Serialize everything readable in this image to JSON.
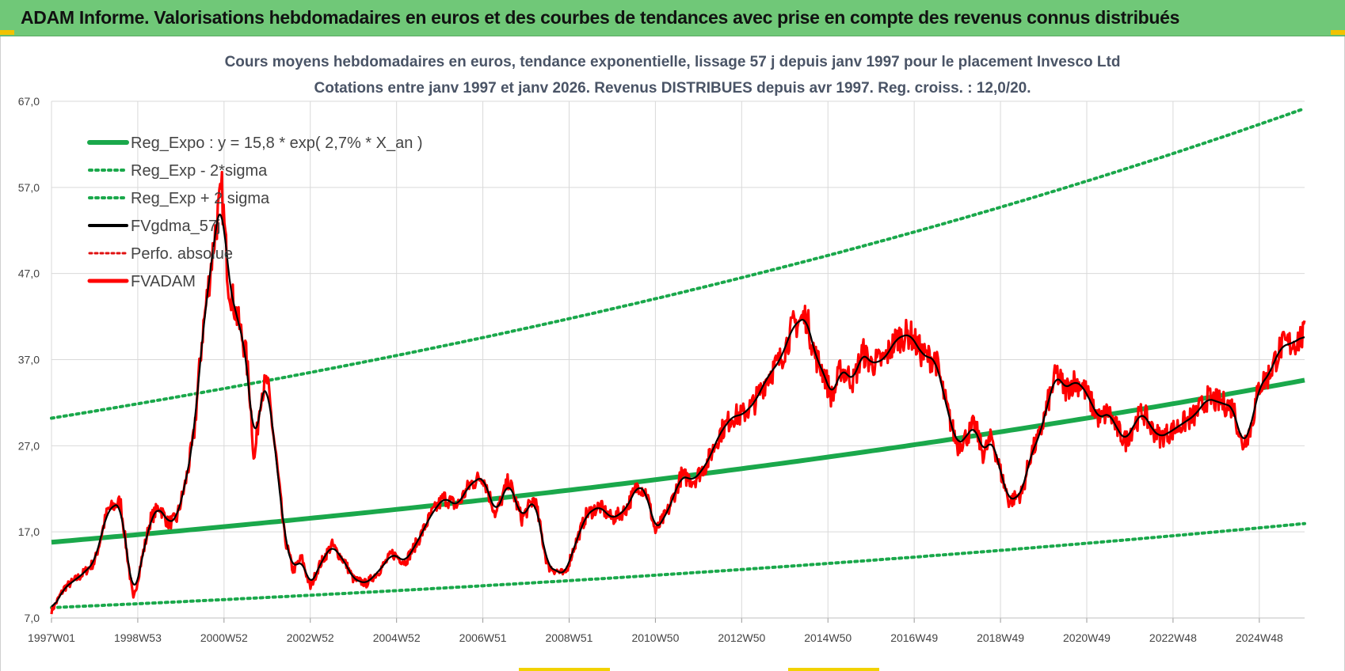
{
  "header": {
    "title": "ADAM Informe. Valorisations hebdomadaires en euros et des courbes de tendances avec prise en compte des revenus connus distribués"
  },
  "chart_data": {
    "type": "line",
    "title_line1": "Cours moyens hebdomadaires en euros, tendance exponentielle, lissage 57 j depuis janv 1997 pour le placement Invesco Ltd",
    "title_line2": "Cotations entre janv 1997 et janv 2026. Revenus DISTRIBUES depuis avr 1997. Reg. croiss. : 12,0/20.",
    "xlabel": "",
    "ylabel": "",
    "x_range": [
      1997.0,
      2026.05
    ],
    "ylim": [
      7.0,
      67.0
    ],
    "y_ticks": [
      7.0,
      17.0,
      27.0,
      37.0,
      47.0,
      57.0,
      67.0
    ],
    "y_tick_labels": [
      "7,0",
      "17,0",
      "27,0",
      "37,0",
      "47,0",
      "57,0",
      "67,0"
    ],
    "x_ticks": [
      1997.0,
      1999.0,
      2001.0,
      2003.0,
      2005.0,
      2007.0,
      2009.0,
      2011.0,
      2013.0,
      2015.0,
      2017.0,
      2019.0,
      2021.0,
      2023.0,
      2025.0
    ],
    "x_tick_labels": [
      "1997W01",
      "1998W53",
      "2000W52",
      "2002W52",
      "2004W52",
      "2006W51",
      "2008W51",
      "2010W50",
      "2012W50",
      "2014W50",
      "2016W49",
      "2018W49",
      "2020W49",
      "2022W48",
      "2024W48"
    ],
    "grid": true,
    "legend_position": "top-left",
    "legend": [
      "Reg_Expo : y = 15,8 * exp( 2,7% *  X_an )",
      "Reg_Exp - 2*sigma",
      "Reg_Exp + 2 sigma",
      "FVgdma_57j",
      "Perfo. absolue",
      "FVADAM"
    ],
    "colors": {
      "reg": "#1aa84b",
      "band": "#1aa84b",
      "smooth": "#000000",
      "perfo": "#e01010",
      "price": "#ff0000"
    },
    "series": [
      {
        "name": "Reg_Expo",
        "x": [
          1997.0,
          2026.05
        ],
        "y_formula": "15.8*exp(0.027*(x-1997))",
        "x_sample": [
          1997,
          2005,
          2015,
          2026
        ],
        "values_sample": [
          15.8,
          19.6,
          25.7,
          34.6
        ]
      },
      {
        "name": "Reg_Exp - 2*sigma",
        "x_sample": [
          1997,
          2005,
          2015,
          2026
        ],
        "values_sample": [
          8.2,
          10.2,
          13.4,
          18.1
        ]
      },
      {
        "name": "Reg_Exp + 2 sigma",
        "x_sample": [
          1997,
          2005,
          2015,
          2026
        ],
        "values_sample": [
          30.2,
          37.6,
          49.1,
          66.5
        ]
      },
      {
        "name": "FVADAM",
        "x": [
          1997.0,
          1997.3,
          1997.7,
          1998.0,
          1998.3,
          1998.6,
          1998.75,
          1998.9,
          1999.1,
          1999.3,
          1999.5,
          1999.7,
          1999.9,
          2000.1,
          2000.3,
          2000.5,
          2000.8,
          2000.95,
          2001.1,
          2001.3,
          2001.5,
          2001.6,
          2001.7,
          2001.85,
          2002.0,
          2002.2,
          2002.4,
          2002.6,
          2002.8,
          2003.0,
          2003.2,
          2003.5,
          2003.8,
          2004.0,
          2004.3,
          2004.6,
          2004.9,
          2005.2,
          2005.5,
          2005.8,
          2006.1,
          2006.4,
          2006.7,
          2007.0,
          2007.3,
          2007.6,
          2007.9,
          2008.2,
          2008.5,
          2008.7,
          2008.9,
          2009.1,
          2009.4,
          2009.7,
          2010.0,
          2010.3,
          2010.6,
          2010.8,
          2011.0,
          2011.3,
          2011.6,
          2011.9,
          2012.2,
          2012.5,
          2012.8,
          2013.0,
          2013.3,
          2013.6,
          2013.9,
          2014.2,
          2014.5,
          2014.7,
          2014.9,
          2015.1,
          2015.3,
          2015.6,
          2015.8,
          2016.0,
          2016.3,
          2016.6,
          2016.9,
          2017.2,
          2017.5,
          2017.8,
          2018.0,
          2018.2,
          2018.4,
          2018.6,
          2018.8,
          2019.0,
          2019.2,
          2019.5,
          2019.7,
          2019.9,
          2020.1,
          2020.3,
          2020.5,
          2020.7,
          2020.9,
          2021.1,
          2021.3,
          2021.5,
          2021.7,
          2021.9,
          2022.1,
          2022.3,
          2022.5,
          2022.7,
          2022.9,
          2023.2,
          2023.5,
          2023.8,
          2024.1,
          2024.4,
          2024.6,
          2024.8,
          2025.0,
          2025.2,
          2025.5,
          2025.8,
          2026.05
        ],
        "values": [
          7.8,
          10.5,
          12.0,
          13.5,
          19.5,
          20.5,
          14.5,
          9.0,
          14.0,
          18.5,
          20.0,
          18.0,
          18.5,
          22.5,
          28.0,
          40.0,
          52.0,
          56.5,
          46.0,
          42.0,
          38.0,
          33.0,
          25.0,
          33.0,
          34.5,
          26.0,
          16.5,
          12.5,
          14.0,
          10.5,
          13.0,
          15.5,
          13.5,
          11.5,
          11.0,
          12.5,
          14.5,
          13.5,
          16.0,
          19.0,
          21.0,
          20.0,
          22.5,
          23.5,
          19.0,
          23.0,
          18.5,
          21.0,
          13.0,
          12.5,
          12.0,
          15.0,
          19.0,
          20.0,
          18.5,
          19.5,
          22.5,
          21.5,
          17.0,
          19.5,
          23.5,
          23.0,
          25.0,
          28.5,
          30.5,
          30.5,
          32.0,
          35.0,
          37.0,
          41.0,
          42.0,
          37.5,
          35.5,
          32.5,
          36.0,
          34.5,
          38.0,
          36.5,
          37.0,
          39.5,
          40.0,
          37.5,
          37.0,
          30.5,
          27.0,
          28.0,
          29.5,
          26.0,
          28.0,
          24.0,
          20.5,
          21.5,
          26.0,
          28.0,
          32.0,
          35.5,
          33.5,
          34.5,
          34.0,
          32.0,
          30.0,
          31.0,
          29.0,
          27.5,
          29.5,
          31.0,
          29.0,
          28.0,
          28.5,
          29.5,
          30.5,
          32.5,
          32.0,
          31.5,
          27.0,
          29.0,
          34.0,
          35.0,
          38.5,
          39.0,
          39.8
        ]
      },
      {
        "name": "FVgdma_57j",
        "values_note": "57-day smoothed average of FVADAM"
      },
      {
        "name": "Perfo. absolue",
        "values_note": "nearly overlaps FVADAM"
      }
    ]
  }
}
